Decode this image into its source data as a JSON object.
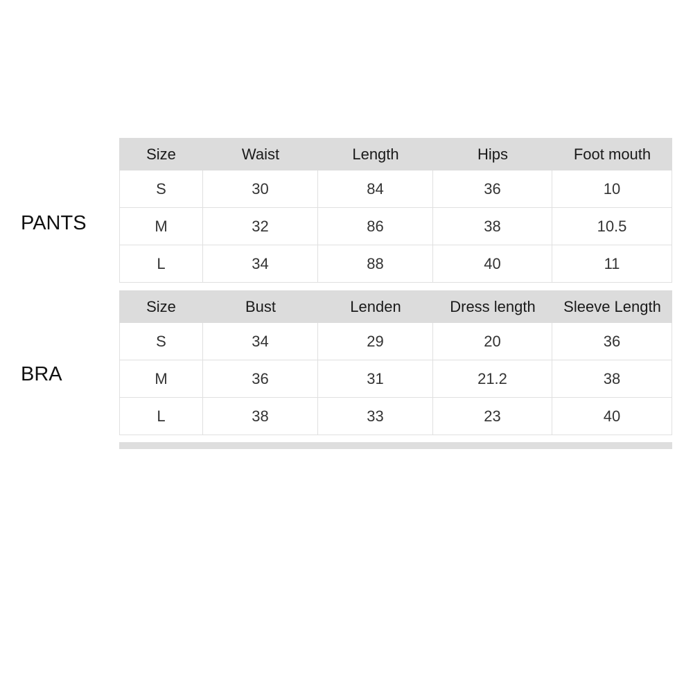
{
  "tables": [
    {
      "label": "PANTS",
      "headers": [
        "Size",
        "Waist",
        "Length",
        "Hips",
        "Foot mouth"
      ],
      "rows": [
        [
          "S",
          "30",
          "84",
          "36",
          "10"
        ],
        [
          "M",
          "32",
          "86",
          "38",
          "10.5"
        ],
        [
          "L",
          "34",
          "88",
          "40",
          "11"
        ]
      ]
    },
    {
      "label": "BRA",
      "headers": [
        "Size",
        "Bust",
        "Lenden",
        "Dress length",
        "Sleeve Length"
      ],
      "rows": [
        [
          "S",
          "34",
          "29",
          "20",
          "36"
        ],
        [
          "M",
          "36",
          "31",
          "21.2",
          "38"
        ],
        [
          "L",
          "38",
          "33",
          "23",
          "40"
        ]
      ]
    }
  ]
}
